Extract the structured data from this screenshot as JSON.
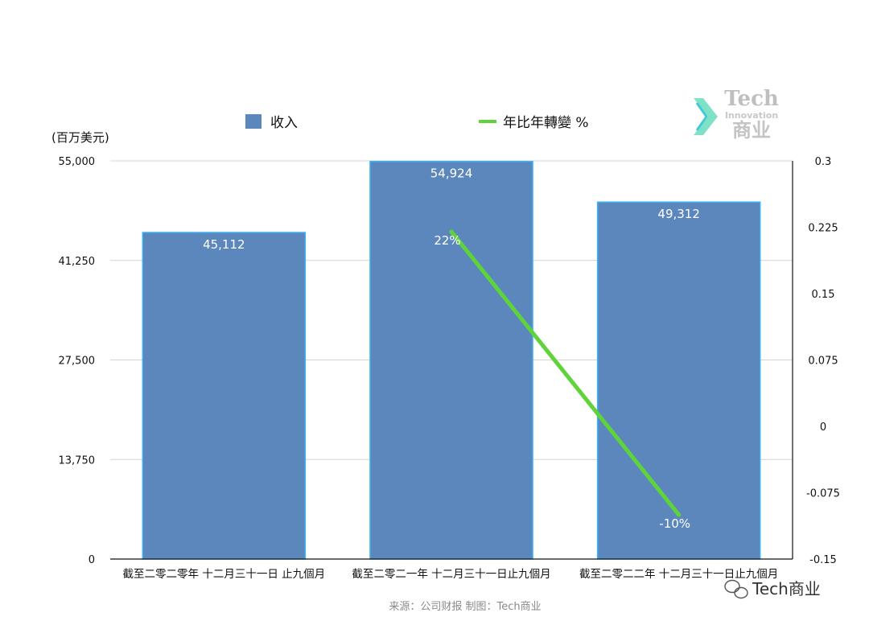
{
  "chart_data": {
    "type": "bar",
    "categories": [
      "截至二零二零年 十二月三十一日 止九個月",
      "截至二零二一年 十二月三十一日止九個月",
      "截至二零二二年 十二月三十一日止九個月"
    ],
    "series": [
      {
        "name": "收入",
        "type": "bar",
        "axis": "left",
        "values": [
          45112,
          54924,
          49312
        ],
        "labels": [
          "45,112",
          "54,924",
          "49,312"
        ],
        "color": "#5b87bd",
        "edge_color": "#3fb3f0"
      },
      {
        "name": "年比年轉變 %",
        "type": "line",
        "axis": "right",
        "values": [
          null,
          0.22,
          -0.1
        ],
        "labels": [
          "",
          "22%",
          "-10%"
        ],
        "color": "#5ed43a"
      }
    ],
    "ylabel": "(百万美元)",
    "ylim": [
      0,
      55000
    ],
    "yticks": [
      "55,000",
      "41,250",
      "27,500",
      "13,750",
      "0"
    ],
    "y2lim": [
      -0.15,
      0.3
    ],
    "y2ticks": [
      "0.3",
      "0.225",
      "0.15",
      "0.075",
      "0",
      "-0.075",
      "-0.15"
    ],
    "grid": true,
    "legend_position": "top-center"
  },
  "source": "来源：公司财报 制图：Tech商业",
  "watermark": "Tech商业",
  "logo": {
    "tech": "Tech",
    "innovation": "Innovation",
    "cn": "商业"
  }
}
